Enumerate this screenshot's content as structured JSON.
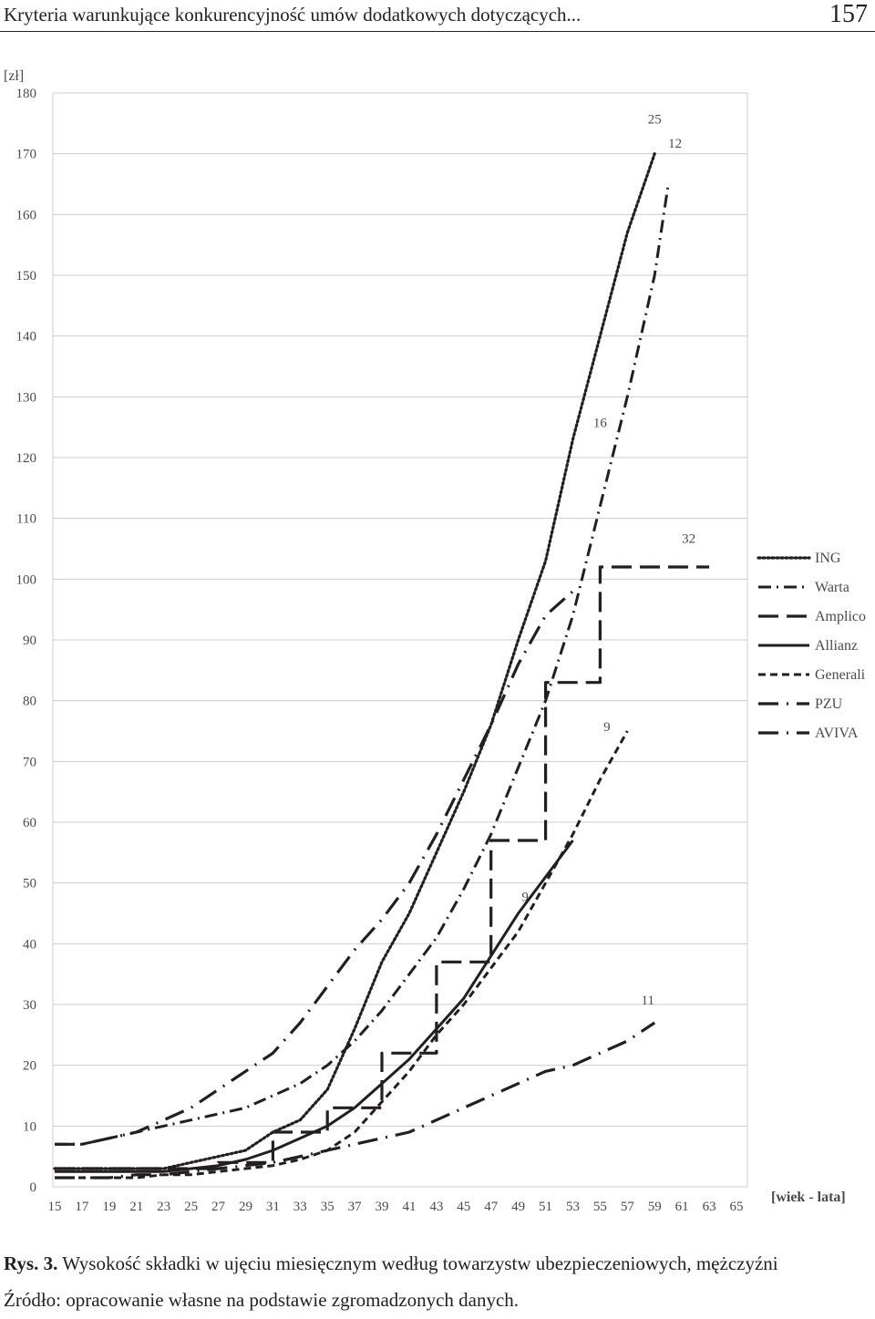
{
  "header": {
    "title": "Kryteria warunkujące konkurencyjność umów dodatkowych dotyczących...",
    "page_number": "157"
  },
  "caption": {
    "label": "Rys. 3.",
    "text": "Wysokość składki w ujęciu miesięcznym według towarzystw ubezpieczeniowych, mężczyźni"
  },
  "source": "Źródło: opracowanie własne na podstawie zgromadzonych danych.",
  "chart_data": {
    "type": "line",
    "ylabel": "[zł]",
    "xlabel": "[wiek - lata]",
    "ylim": [
      0,
      180
    ],
    "xlim": [
      15,
      65
    ],
    "yticks": [
      0,
      10,
      20,
      30,
      40,
      50,
      60,
      70,
      80,
      90,
      100,
      110,
      120,
      130,
      140,
      150,
      160,
      170,
      180
    ],
    "xticks": [
      15,
      17,
      19,
      21,
      23,
      25,
      27,
      29,
      31,
      33,
      35,
      37,
      39,
      41,
      43,
      45,
      47,
      49,
      51,
      53,
      55,
      57,
      59,
      61,
      63,
      65
    ],
    "grid": "horizontal",
    "legend_position": "right",
    "series": [
      {
        "name": "ING",
        "style": "dotted",
        "x": [
          15,
          17,
          19,
          21,
          23,
          25,
          27,
          29,
          31,
          33,
          35,
          37,
          39,
          41,
          43,
          45,
          47,
          49,
          51,
          53,
          55,
          57,
          59
        ],
        "y": [
          3,
          3,
          3,
          3,
          3,
          4,
          5,
          6,
          9,
          11,
          16,
          26,
          37,
          45,
          55,
          65,
          76,
          90,
          103,
          123,
          140,
          157,
          170
        ]
      },
      {
        "name": "Warta",
        "style": "dash-dot",
        "x": [
          15,
          17,
          19,
          21,
          23,
          25,
          27,
          29,
          31,
          33,
          35,
          37,
          39,
          41,
          43,
          45,
          47,
          49,
          51,
          53,
          55,
          57,
          59,
          60
        ],
        "y": [
          7,
          7,
          8,
          9,
          10,
          11,
          12,
          13,
          15,
          17,
          20,
          24,
          29,
          35,
          41,
          49,
          58,
          69,
          80,
          94,
          112,
          130,
          150,
          165
        ]
      },
      {
        "name": "Amplico",
        "style": "long-dash",
        "x": [
          15,
          17,
          19,
          21,
          23,
          25,
          27,
          27,
          29,
          31,
          31,
          33,
          35,
          35,
          37,
          39,
          39,
          41,
          43,
          43,
          45,
          47,
          47,
          49,
          51,
          51,
          53,
          55,
          55,
          57,
          59,
          59,
          61,
          63
        ],
        "y": [
          3,
          3,
          3,
          3,
          3,
          3,
          3,
          4,
          4,
          4,
          9,
          9,
          9,
          13,
          13,
          13,
          22,
          22,
          22,
          37,
          37,
          37,
          57,
          57,
          57,
          83,
          83,
          83,
          102,
          102,
          102,
          102,
          102,
          102
        ]
      },
      {
        "name": "Allianz",
        "style": "solid",
        "x": [
          15,
          17,
          19,
          21,
          23,
          25,
          27,
          29,
          31,
          33,
          35,
          37,
          39,
          41,
          43,
          45,
          47,
          49,
          51,
          53
        ],
        "y": [
          2.5,
          2.5,
          2.5,
          2.5,
          2.5,
          3,
          3.5,
          4.5,
          6,
          8,
          10,
          13,
          17,
          21,
          26,
          31,
          38,
          45,
          51,
          57
        ]
      },
      {
        "name": "Generali",
        "style": "short-dash",
        "x": [
          15,
          17,
          19,
          21,
          23,
          25,
          27,
          29,
          31,
          33,
          35,
          37,
          39,
          41,
          43,
          45,
          47,
          49,
          51,
          53,
          55,
          57
        ],
        "y": [
          1.5,
          1.5,
          1.5,
          1.5,
          2,
          2,
          2.5,
          3,
          3.5,
          4.5,
          6,
          9,
          14,
          19,
          25,
          30,
          36,
          42,
          50,
          58,
          67,
          75
        ]
      },
      {
        "name": "PZU",
        "style": "long-dash-dot",
        "x": [
          15,
          17,
          19,
          21,
          23,
          25,
          27,
          29,
          31,
          33,
          35,
          37,
          39,
          41,
          43,
          45,
          47,
          49,
          51,
          53
        ],
        "y": [
          7,
          7,
          8,
          9,
          11,
          13,
          16,
          19,
          22,
          27,
          33,
          39,
          44,
          50,
          58,
          67,
          76,
          86,
          94,
          98
        ]
      },
      {
        "name": "AVIVA",
        "style": "long-dash-dot",
        "x": [
          15,
          17,
          19,
          21,
          23,
          25,
          27,
          29,
          31,
          33,
          35,
          37,
          39,
          41,
          43,
          45,
          47,
          49,
          51,
          53,
          55,
          57,
          59
        ],
        "y": [
          1.5,
          1.5,
          1.5,
          2,
          2,
          2.5,
          3,
          3.5,
          4,
          5,
          6,
          7,
          8,
          9,
          11,
          13,
          15,
          17,
          19,
          20,
          22,
          24,
          27
        ]
      }
    ],
    "annotations": [
      {
        "text": "25",
        "x": 59,
        "y": 175
      },
      {
        "text": "12",
        "x": 60.5,
        "y": 171
      },
      {
        "text": "16",
        "x": 55,
        "y": 125
      },
      {
        "text": "32",
        "x": 61.5,
        "y": 106
      },
      {
        "text": "9",
        "x": 55.5,
        "y": 75
      },
      {
        "text": "9",
        "x": 49.5,
        "y": 47
      },
      {
        "text": "11",
        "x": 58.5,
        "y": 30
      }
    ]
  }
}
